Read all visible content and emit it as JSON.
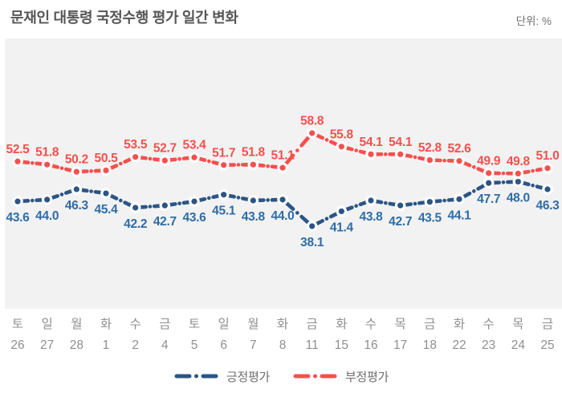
{
  "header": {
    "title": "문재인 대통령 국정수행 평가 일간 변화",
    "unit": "단위: %"
  },
  "colors": {
    "positive_line": "#2B5585",
    "positive_label": "#2E6CA6",
    "negative_line": "#F4504D",
    "negative_label": "#F4504D",
    "plot_background": "#F2F2F2",
    "axis_text": "#8F8F8F",
    "title_text": "#565656"
  },
  "chart_data": {
    "type": "line",
    "title": "문재인 대통령 국정수행 평가 일간 변화",
    "unit": "단위: %",
    "legend_position": "bottom-center",
    "grid": false,
    "ylim": [
      20,
      80
    ],
    "x_dow": [
      "토",
      "일",
      "월",
      "화",
      "수",
      "금",
      "토",
      "일",
      "월",
      "화",
      "금",
      "화",
      "수",
      "목",
      "금",
      "화",
      "수",
      "목",
      "금"
    ],
    "x_day": [
      "26",
      "27",
      "28",
      "1",
      "2",
      "4",
      "5",
      "6",
      "7",
      "8",
      "11",
      "15",
      "16",
      "17",
      "18",
      "22",
      "23",
      "24",
      "25"
    ],
    "series": [
      {
        "name": "긍정평가",
        "color": "#2B5585",
        "label_color": "#2E6CA6",
        "label_position": "below",
        "values": [
          43.6,
          44.0,
          46.3,
          45.4,
          42.2,
          42.7,
          43.6,
          45.1,
          43.8,
          44.0,
          38.1,
          41.4,
          43.8,
          42.7,
          43.5,
          44.1,
          47.7,
          48.0,
          46.3
        ]
      },
      {
        "name": "부정평가",
        "color": "#F4504D",
        "label_color": "#F4504D",
        "label_position": "above",
        "values": [
          52.5,
          51.8,
          50.2,
          50.5,
          53.5,
          52.7,
          53.4,
          51.7,
          51.8,
          51.1,
          58.8,
          55.8,
          54.1,
          54.1,
          52.8,
          52.6,
          49.9,
          49.8,
          51.0
        ]
      }
    ]
  }
}
